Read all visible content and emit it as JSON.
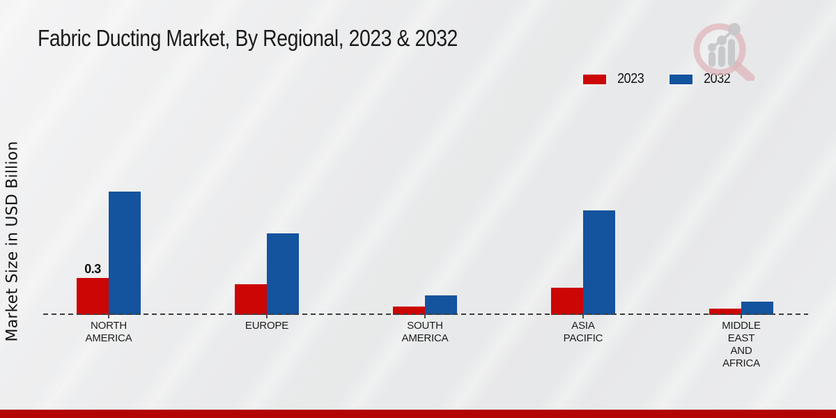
{
  "header": {
    "title": "Fabric Ducting Market, By Regional, 2023 & 2032"
  },
  "y_axis": {
    "label": "Market Size in USD Billion"
  },
  "colors": {
    "series_2023": "#cc0505",
    "series_2032": "#14539e",
    "footer_bar": "#b30505",
    "baseline": "#3c3c3c"
  },
  "logo": {
    "name": "market-research-watermark-logo"
  },
  "chart_data": {
    "type": "bar",
    "title": "Fabric Ducting Market, By Regional, 2023 & 2032",
    "xlabel": "",
    "ylabel": "Market Size in USD Billion",
    "categories": [
      "NORTH AMERICA",
      "EUROPE",
      "SOUTH AMERICA",
      "ASIA PACIFIC",
      "MIDDLE EAST AND AFRICA"
    ],
    "category_lines": [
      [
        "NORTH",
        "AMERICA"
      ],
      [
        "EUROPE"
      ],
      [
        "SOUTH",
        "AMERICA"
      ],
      [
        "ASIA",
        "PACIFIC"
      ],
      [
        "MIDDLE",
        "EAST",
        "AND",
        "AFRICA"
      ]
    ],
    "series": [
      {
        "name": "2023",
        "color": "#cc0505",
        "values": [
          0.3,
          0.25,
          0.07,
          0.22,
          0.05
        ]
      },
      {
        "name": "2032",
        "color": "#14539e",
        "values": [
          1.0,
          0.66,
          0.16,
          0.85,
          0.11
        ]
      }
    ],
    "data_labels": [
      {
        "series_index": 0,
        "category_index": 0,
        "text": "0.3"
      }
    ],
    "ylim": [
      0,
      1.1
    ],
    "grid": false,
    "baseline_style": "dashed",
    "legend_position": "top-right"
  }
}
